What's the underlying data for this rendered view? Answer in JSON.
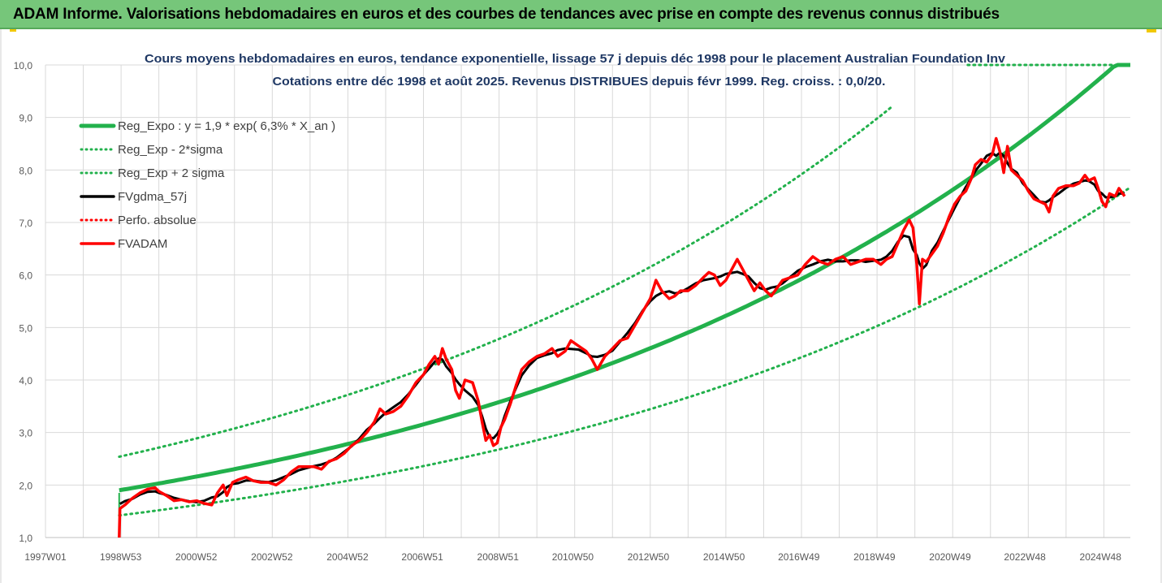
{
  "banner": {
    "title": "ADAM Informe. Valorisations hebdomadaires en euros et des courbes de tendances avec prise en compte des revenus connus distribués"
  },
  "chart_data": {
    "type": "line",
    "title": "Cours moyens hebdomadaires en euros, tendance exponentielle, lissage 57 j depuis déc 1998 pour le placement Australian Foundation Inv",
    "subtitle": "Cotations entre déc 1998 et août 2025. Revenus DISTRIBUES depuis févr 1999. Reg. croiss. : 0,0/20.",
    "xlabel": "",
    "ylabel": "",
    "ylim": [
      1.0,
      10.0
    ],
    "yticks": [
      "1,0",
      "2,0",
      "3,0",
      "4,0",
      "5,0",
      "6,0",
      "7,0",
      "8,0",
      "9,0",
      "10,0"
    ],
    "xlim": [
      1997.0,
      2025.7
    ],
    "xticks": [
      {
        "label": "1997W01",
        "x": 1997.0
      },
      {
        "label": "1998W53",
        "x": 1998.99
      },
      {
        "label": "2000W52",
        "x": 2000.99
      },
      {
        "label": "2002W52",
        "x": 2002.99
      },
      {
        "label": "2004W52",
        "x": 2004.99
      },
      {
        "label": "2006W51",
        "x": 2006.97
      },
      {
        "label": "2008W51",
        "x": 2008.97
      },
      {
        "label": "2010W50",
        "x": 2010.95
      },
      {
        "label": "2012W50",
        "x": 2012.95
      },
      {
        "label": "2014W50",
        "x": 2014.95
      },
      {
        "label": "2016W49",
        "x": 2016.93
      },
      {
        "label": "2018W49",
        "x": 2018.93
      },
      {
        "label": "2020W49",
        "x": 2020.93
      },
      {
        "label": "2022W48",
        "x": 2022.91
      },
      {
        "label": "2024W48",
        "x": 2024.91
      }
    ],
    "grid": true,
    "legend_position": "top-left",
    "regression": {
      "a": 1.9,
      "rate": 0.063,
      "start": 1998.95,
      "sigma_band": 0.29
    },
    "series": [
      {
        "name": "Reg_Expo : y = 1,9 * exp( 6,3% *  X_an )",
        "color": "#22b14c",
        "style": "solid",
        "width": 5
      },
      {
        "name": "Reg_Exp - 2*sigma",
        "color": "#22b14c",
        "style": "dotted",
        "width": 3
      },
      {
        "name": "Reg_Exp + 2 sigma",
        "color": "#22b14c",
        "style": "dotted",
        "width": 3
      },
      {
        "name": "FVgdma_57j",
        "color": "#000000",
        "style": "solid",
        "width": 3
      },
      {
        "name": "Perfo. absolue",
        "color": "#ff0000",
        "style": "dotted",
        "width": 2
      },
      {
        "name": "FVADAM",
        "color": "#ff0000",
        "style": "solid",
        "width": 3.5
      }
    ],
    "fvadam": [
      [
        1998.95,
        1.0
      ],
      [
        1998.97,
        1.55
      ],
      [
        1999.1,
        1.62
      ],
      [
        1999.3,
        1.75
      ],
      [
        1999.5,
        1.85
      ],
      [
        1999.7,
        1.92
      ],
      [
        1999.9,
        1.95
      ],
      [
        2000.0,
        1.88
      ],
      [
        2000.2,
        1.8
      ],
      [
        2000.4,
        1.7
      ],
      [
        2000.6,
        1.72
      ],
      [
        2000.8,
        1.68
      ],
      [
        2001.0,
        1.7
      ],
      [
        2001.2,
        1.65
      ],
      [
        2001.4,
        1.62
      ],
      [
        2001.55,
        1.85
      ],
      [
        2001.7,
        2.0
      ],
      [
        2001.8,
        1.8
      ],
      [
        2001.95,
        2.05
      ],
      [
        2002.1,
        2.1
      ],
      [
        2002.3,
        2.15
      ],
      [
        2002.5,
        2.08
      ],
      [
        2002.7,
        2.05
      ],
      [
        2002.9,
        2.05
      ],
      [
        2003.1,
        2.0
      ],
      [
        2003.3,
        2.1
      ],
      [
        2003.5,
        2.25
      ],
      [
        2003.7,
        2.35
      ],
      [
        2003.9,
        2.35
      ],
      [
        2004.1,
        2.35
      ],
      [
        2004.3,
        2.3
      ],
      [
        2004.5,
        2.45
      ],
      [
        2004.7,
        2.5
      ],
      [
        2004.9,
        2.6
      ],
      [
        2005.1,
        2.75
      ],
      [
        2005.3,
        2.85
      ],
      [
        2005.5,
        3.0
      ],
      [
        2005.7,
        3.2
      ],
      [
        2005.85,
        3.45
      ],
      [
        2006.0,
        3.35
      ],
      [
        2006.2,
        3.4
      ],
      [
        2006.4,
        3.5
      ],
      [
        2006.6,
        3.7
      ],
      [
        2006.8,
        3.95
      ],
      [
        2007.0,
        4.1
      ],
      [
        2007.15,
        4.3
      ],
      [
        2007.3,
        4.45
      ],
      [
        2007.4,
        4.3
      ],
      [
        2007.5,
        4.6
      ],
      [
        2007.6,
        4.4
      ],
      [
        2007.75,
        4.2
      ],
      [
        2007.85,
        3.8
      ],
      [
        2007.95,
        3.65
      ],
      [
        2008.1,
        4.0
      ],
      [
        2008.3,
        3.95
      ],
      [
        2008.45,
        3.6
      ],
      [
        2008.55,
        3.2
      ],
      [
        2008.65,
        2.85
      ],
      [
        2008.75,
        2.95
      ],
      [
        2008.85,
        2.75
      ],
      [
        2008.95,
        2.8
      ],
      [
        2009.05,
        3.1
      ],
      [
        2009.15,
        3.25
      ],
      [
        2009.3,
        3.55
      ],
      [
        2009.45,
        3.9
      ],
      [
        2009.6,
        4.2
      ],
      [
        2009.8,
        4.35
      ],
      [
        2010.0,
        4.45
      ],
      [
        2010.2,
        4.5
      ],
      [
        2010.4,
        4.6
      ],
      [
        2010.55,
        4.45
      ],
      [
        2010.75,
        4.55
      ],
      [
        2010.9,
        4.75
      ],
      [
        2011.1,
        4.65
      ],
      [
        2011.3,
        4.55
      ],
      [
        2011.45,
        4.4
      ],
      [
        2011.6,
        4.2
      ],
      [
        2011.8,
        4.45
      ],
      [
        2012.0,
        4.6
      ],
      [
        2012.2,
        4.75
      ],
      [
        2012.4,
        4.8
      ],
      [
        2012.6,
        5.05
      ],
      [
        2012.8,
        5.3
      ],
      [
        2013.0,
        5.55
      ],
      [
        2013.15,
        5.9
      ],
      [
        2013.3,
        5.7
      ],
      [
        2013.5,
        5.55
      ],
      [
        2013.65,
        5.6
      ],
      [
        2013.8,
        5.7
      ],
      [
        2014.0,
        5.7
      ],
      [
        2014.2,
        5.8
      ],
      [
        2014.4,
        5.95
      ],
      [
        2014.55,
        6.05
      ],
      [
        2014.7,
        6.0
      ],
      [
        2014.85,
        5.8
      ],
      [
        2015.0,
        5.9
      ],
      [
        2015.15,
        6.1
      ],
      [
        2015.3,
        6.3
      ],
      [
        2015.45,
        6.1
      ],
      [
        2015.6,
        5.9
      ],
      [
        2015.75,
        5.7
      ],
      [
        2015.9,
        5.85
      ],
      [
        2016.05,
        5.7
      ],
      [
        2016.2,
        5.6
      ],
      [
        2016.35,
        5.75
      ],
      [
        2016.5,
        5.9
      ],
      [
        2016.7,
        5.95
      ],
      [
        2016.9,
        6.0
      ],
      [
        2017.1,
        6.2
      ],
      [
        2017.3,
        6.35
      ],
      [
        2017.5,
        6.25
      ],
      [
        2017.7,
        6.2
      ],
      [
        2017.9,
        6.3
      ],
      [
        2018.1,
        6.35
      ],
      [
        2018.3,
        6.2
      ],
      [
        2018.5,
        6.25
      ],
      [
        2018.7,
        6.3
      ],
      [
        2018.9,
        6.3
      ],
      [
        2019.1,
        6.2
      ],
      [
        2019.25,
        6.3
      ],
      [
        2019.4,
        6.35
      ],
      [
        2019.55,
        6.6
      ],
      [
        2019.7,
        6.85
      ],
      [
        2019.85,
        7.05
      ],
      [
        2019.95,
        6.9
      ],
      [
        2020.05,
        6.2
      ],
      [
        2020.12,
        5.45
      ],
      [
        2020.2,
        6.3
      ],
      [
        2020.3,
        6.25
      ],
      [
        2020.45,
        6.4
      ],
      [
        2020.6,
        6.55
      ],
      [
        2020.75,
        6.8
      ],
      [
        2020.9,
        7.1
      ],
      [
        2021.05,
        7.35
      ],
      [
        2021.2,
        7.5
      ],
      [
        2021.35,
        7.6
      ],
      [
        2021.5,
        7.85
      ],
      [
        2021.6,
        8.1
      ],
      [
        2021.75,
        8.2
      ],
      [
        2021.9,
        8.15
      ],
      [
        2022.05,
        8.3
      ],
      [
        2022.15,
        8.6
      ],
      [
        2022.25,
        8.35
      ],
      [
        2022.35,
        7.95
      ],
      [
        2022.45,
        8.45
      ],
      [
        2022.55,
        8.0
      ],
      [
        2022.7,
        7.9
      ],
      [
        2022.85,
        7.8
      ],
      [
        2023.0,
        7.6
      ],
      [
        2023.15,
        7.45
      ],
      [
        2023.3,
        7.4
      ],
      [
        2023.45,
        7.35
      ],
      [
        2023.55,
        7.2
      ],
      [
        2023.65,
        7.5
      ],
      [
        2023.8,
        7.65
      ],
      [
        2024.0,
        7.7
      ],
      [
        2024.2,
        7.7
      ],
      [
        2024.35,
        7.75
      ],
      [
        2024.5,
        7.9
      ],
      [
        2024.6,
        7.8
      ],
      [
        2024.75,
        7.85
      ],
      [
        2024.85,
        7.65
      ],
      [
        2024.95,
        7.4
      ],
      [
        2025.05,
        7.3
      ],
      [
        2025.15,
        7.55
      ],
      [
        2025.3,
        7.5
      ],
      [
        2025.4,
        7.65
      ],
      [
        2025.55,
        7.5
      ]
    ]
  }
}
